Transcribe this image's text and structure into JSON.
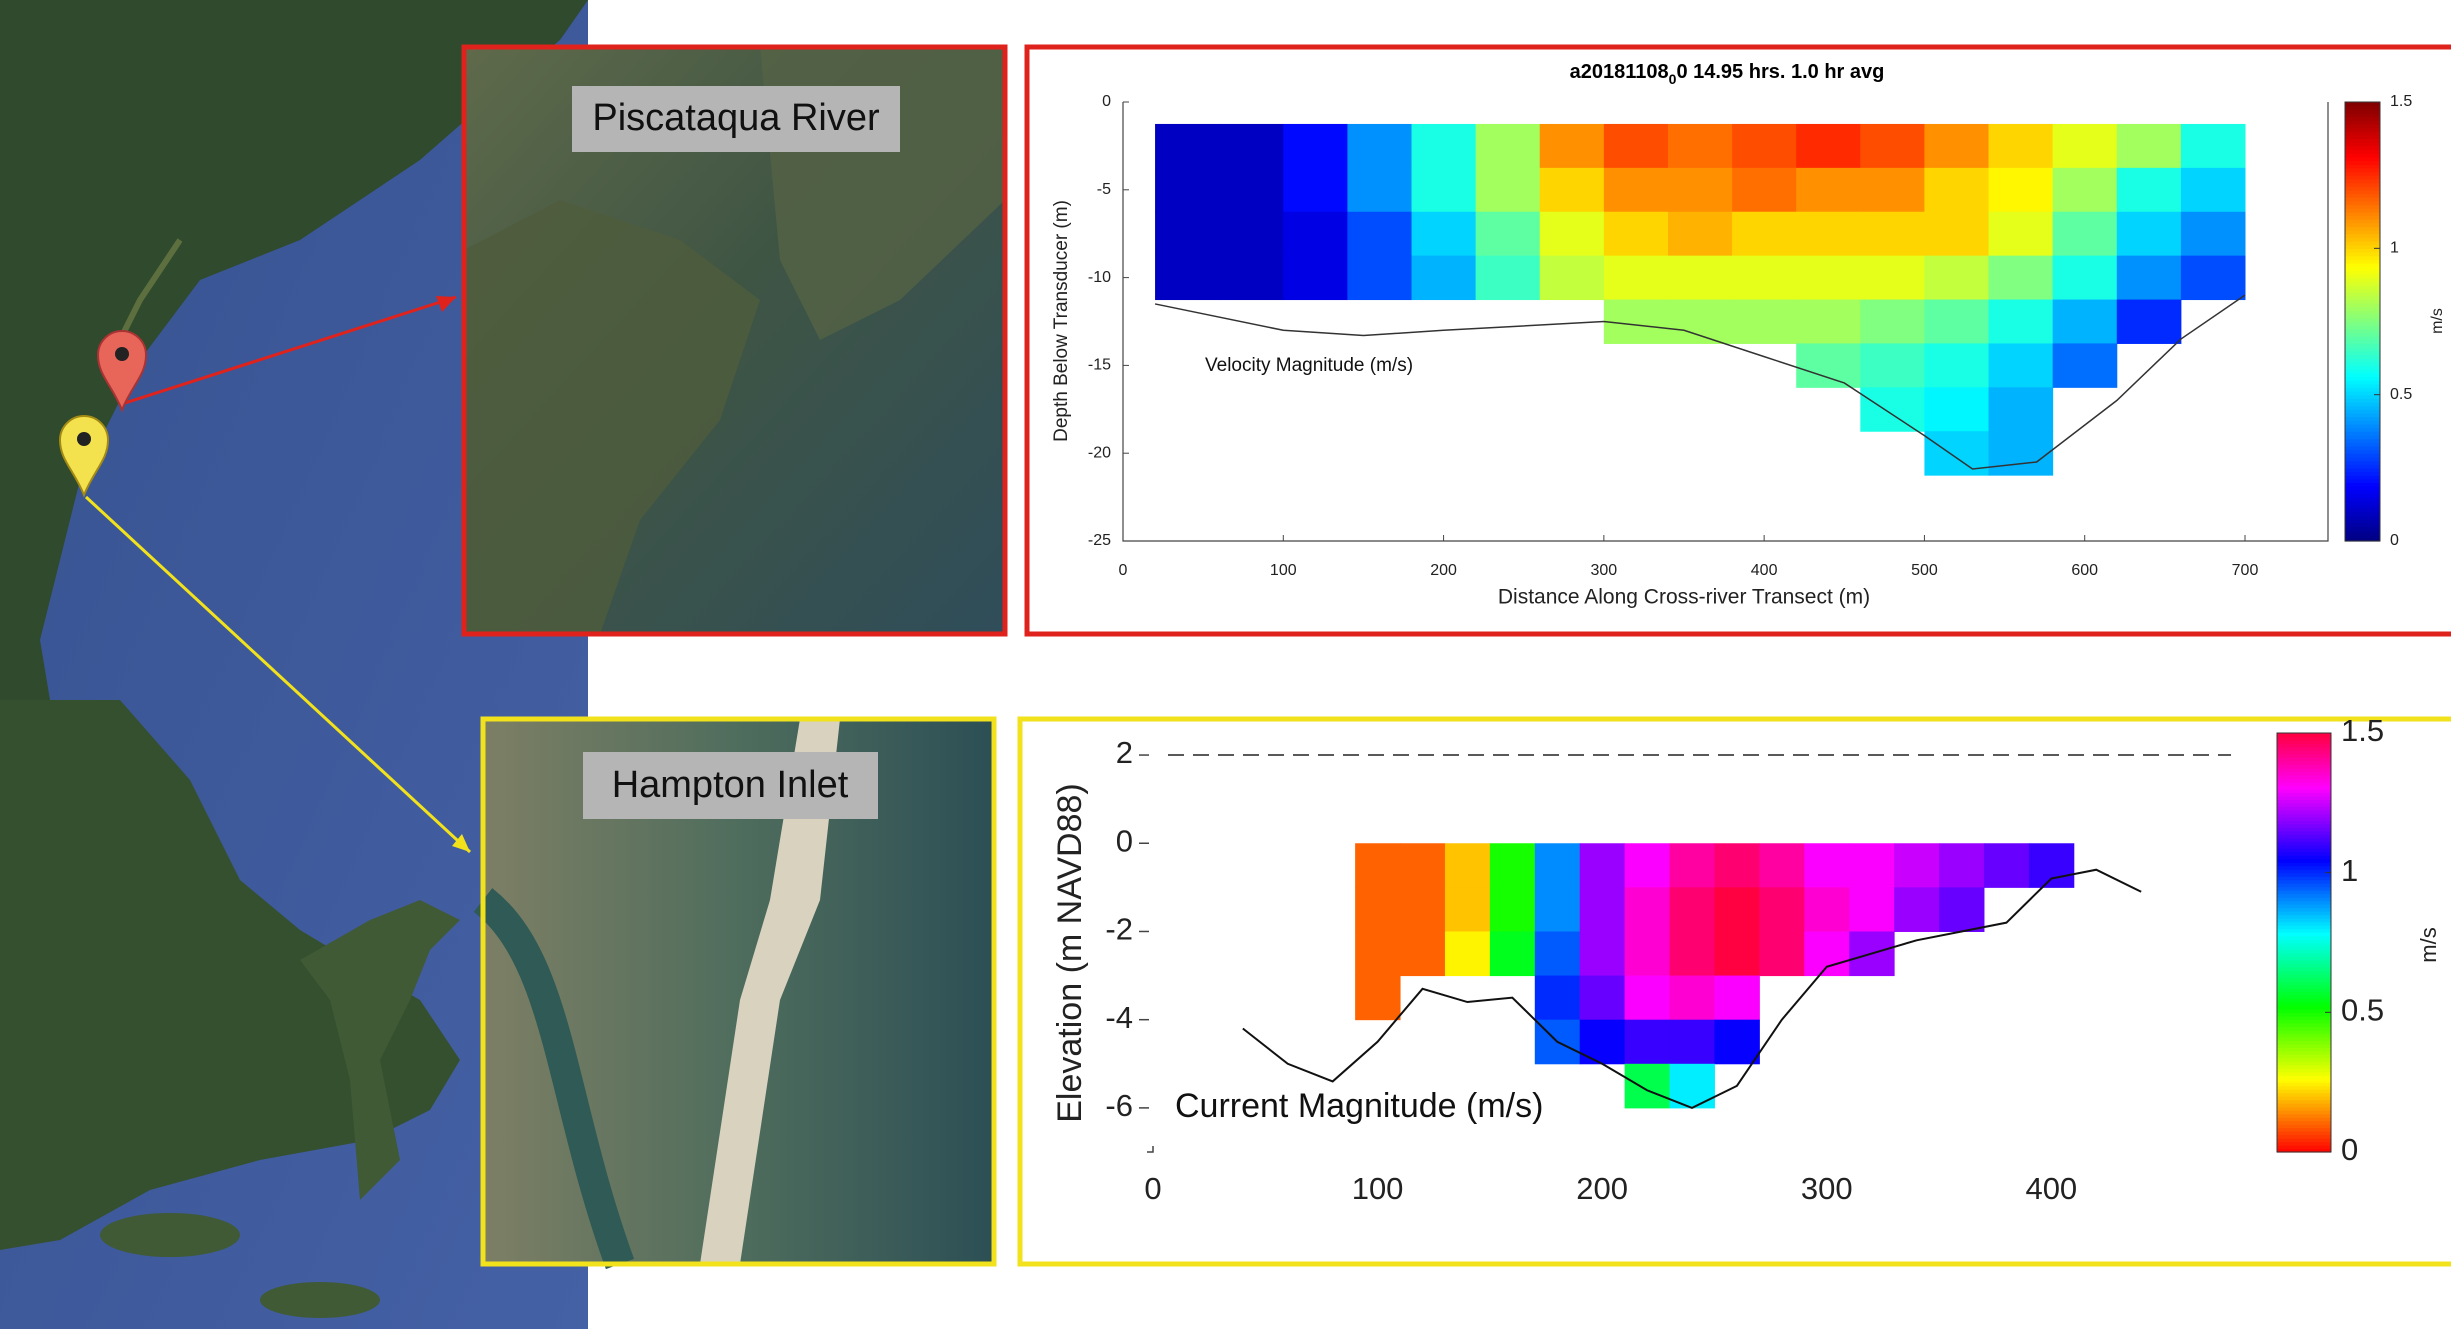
{
  "insets": [
    {
      "label": "Piscataqua River"
    },
    {
      "label": "Hampton Inlet"
    }
  ],
  "chart_data": [
    {
      "type": "heatmap",
      "title_parts": [
        "a20181108",
        "0",
        "0  14.95 hrs.  1.0 hr avg"
      ],
      "annotation": "Velocity Magnitude (m/s)",
      "xlabel": "Distance Along Cross-river Transect (m)",
      "ylabel": "Depth Below Transducer (m)",
      "colorbar_label": "m/s",
      "colormap": "jet",
      "xlim": [
        0,
        700
      ],
      "ylim": [
        -25,
        0
      ],
      "xticks": [
        0,
        100,
        200,
        300,
        400,
        500,
        600,
        700
      ],
      "yticks": [
        0,
        -5,
        -10,
        -15,
        -20,
        -25
      ],
      "clim": [
        0,
        1.5
      ],
      "cticks": [
        0,
        0.5,
        1,
        1.5
      ],
      "x": [
        40,
        80,
        120,
        160,
        200,
        240,
        280,
        320,
        360,
        400,
        440,
        480,
        520,
        560,
        600,
        640,
        680
      ],
      "y": [
        -2.5,
        -5,
        -7.5,
        -10,
        -12.5,
        -15,
        -17.5,
        -20
      ],
      "z": [
        [
          0.1,
          0.1,
          0.2,
          0.4,
          0.6,
          0.8,
          1.1,
          1.2,
          1.15,
          1.2,
          1.25,
          1.2,
          1.1,
          1.0,
          0.9,
          0.8,
          0.6
        ],
        [
          0.1,
          0.1,
          0.2,
          0.4,
          0.6,
          0.8,
          1.0,
          1.1,
          1.1,
          1.15,
          1.1,
          1.1,
          1.0,
          0.95,
          0.8,
          0.6,
          0.5
        ],
        [
          0.1,
          0.1,
          0.15,
          0.3,
          0.5,
          0.7,
          0.9,
          1.0,
          1.05,
          1.0,
          1.0,
          1.0,
          1.0,
          0.9,
          0.7,
          0.5,
          0.4
        ],
        [
          0.1,
          0.1,
          0.15,
          0.3,
          0.45,
          0.65,
          0.85,
          0.9,
          0.9,
          0.9,
          0.9,
          0.9,
          0.85,
          0.75,
          0.6,
          0.4,
          0.3
        ],
        [
          null,
          null,
          null,
          null,
          null,
          null,
          null,
          0.8,
          0.8,
          0.8,
          0.8,
          0.75,
          0.7,
          0.6,
          0.45,
          0.25,
          null
        ],
        [
          null,
          null,
          null,
          null,
          null,
          null,
          null,
          null,
          null,
          null,
          0.7,
          0.65,
          0.6,
          0.5,
          0.35,
          null,
          null
        ],
        [
          null,
          null,
          null,
          null,
          null,
          null,
          null,
          null,
          null,
          null,
          null,
          0.6,
          0.55,
          0.45,
          null,
          null,
          null
        ],
        [
          null,
          null,
          null,
          null,
          null,
          null,
          null,
          null,
          null,
          null,
          null,
          null,
          0.5,
          0.45,
          null,
          null,
          null
        ]
      ],
      "bottom_line": {
        "color": "#333333",
        "x": [
          20,
          100,
          150,
          200,
          300,
          350,
          400,
          450,
          500,
          530,
          570,
          620,
          660,
          700
        ],
        "y": [
          -11.5,
          -13,
          -13.3,
          -13,
          -12.5,
          -13,
          -14.5,
          -16,
          -19,
          -20.9,
          -20.5,
          -17,
          -13.5,
          -11
        ]
      }
    },
    {
      "type": "heatmap",
      "annotation": "Current Magnitude (m/s)",
      "ylabel": "Elevation (m NAVD88)",
      "colorbar_label": "m/s",
      "colormap": "hsv",
      "xlim": [
        0,
        480
      ],
      "ylim": [
        -7,
        2.5
      ],
      "xticks": [
        0,
        100,
        200,
        300,
        400
      ],
      "yticks": [
        -6,
        -4,
        -2,
        0,
        2
      ],
      "hline": 2,
      "clim": [
        0,
        1.5
      ],
      "cticks": [
        0,
        0.5,
        1,
        1.5
      ],
      "x": [
        100,
        120,
        140,
        160,
        180,
        200,
        220,
        240,
        260,
        280,
        300,
        320,
        340,
        360,
        380,
        400
      ],
      "y": [
        -0.5,
        -1.5,
        -2.5,
        -3.5,
        -4.5,
        -5.5
      ],
      "z": [
        [
          0.1,
          0.1,
          0.2,
          0.5,
          0.9,
          1.2,
          1.3,
          1.4,
          1.45,
          1.4,
          1.3,
          1.3,
          1.25,
          1.2,
          1.15,
          1.1
        ],
        [
          0.1,
          0.1,
          0.2,
          0.5,
          0.9,
          1.2,
          1.35,
          1.45,
          1.5,
          1.45,
          1.35,
          1.3,
          1.2,
          1.15,
          null,
          null
        ],
        [
          0.1,
          0.1,
          0.25,
          0.55,
          0.95,
          1.2,
          1.35,
          1.45,
          1.5,
          1.45,
          1.3,
          1.2,
          null,
          null,
          null,
          null
        ],
        [
          0.1,
          null,
          null,
          null,
          1.0,
          1.15,
          1.3,
          1.35,
          1.3,
          null,
          null,
          null,
          null,
          null,
          null,
          null
        ],
        [
          null,
          null,
          null,
          null,
          0.95,
          1.05,
          1.1,
          1.1,
          1.05,
          null,
          null,
          null,
          null,
          null,
          null,
          null
        ],
        [
          null,
          null,
          null,
          null,
          null,
          null,
          0.6,
          0.8,
          null,
          null,
          null,
          null,
          null,
          null,
          null,
          null
        ]
      ],
      "bottom_line": {
        "color": "#111111",
        "x": [
          40,
          60,
          80,
          100,
          120,
          140,
          160,
          180,
          200,
          220,
          240,
          260,
          280,
          300,
          320,
          340,
          360,
          380,
          400,
          420,
          440
        ],
        "y": [
          -4.2,
          -5,
          -5.4,
          -4.5,
          -3.3,
          -3.6,
          -3.5,
          -4.5,
          -5,
          -5.6,
          -6,
          -5.5,
          -4,
          -2.8,
          -2.5,
          -2.2,
          -2,
          -1.8,
          -0.8,
          -0.6,
          -1.1
        ]
      }
    }
  ]
}
